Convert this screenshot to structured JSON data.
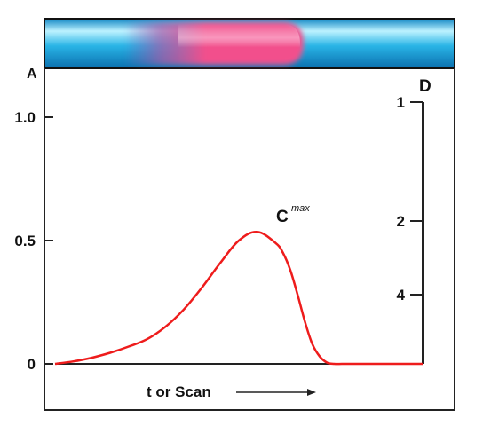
{
  "chart_data": {
    "type": "line",
    "ylabel": "A",
    "right_axis_label": "D",
    "xlabel": "t or Scan",
    "y_ticks": [
      {
        "value": 1.0,
        "label": "1.0"
      },
      {
        "value": 0.5,
        "label": "0.5"
      },
      {
        "value": 0,
        "label": "0"
      }
    ],
    "right_ticks": [
      "1",
      "2",
      "4"
    ],
    "ylim": [
      0,
      1.0
    ],
    "peak_label": "C",
    "peak_label_superscript": "max",
    "series": [
      {
        "color": "#ee1c1c",
        "x": [
          0,
          0.05,
          0.1,
          0.15,
          0.2,
          0.25,
          0.3,
          0.35,
          0.4,
          0.45,
          0.5,
          0.55,
          0.6,
          0.62,
          0.64,
          0.66,
          0.68,
          0.7,
          0.72,
          0.74,
          0.76,
          0.78,
          0.8,
          0.83,
          0.86,
          1.0
        ],
        "y": [
          0,
          0.01,
          0.025,
          0.045,
          0.07,
          0.1,
          0.15,
          0.22,
          0.31,
          0.41,
          0.5,
          0.535,
          0.49,
          0.45,
          0.38,
          0.28,
          0.17,
          0.08,
          0.03,
          0.005,
          0,
          0,
          0,
          0,
          0,
          0
        ]
      }
    ],
    "colors": {
      "tube": "#29b4e6",
      "tube_highlight": "#bdf2ff",
      "band": "#f2508c",
      "axis": "#222222"
    }
  }
}
